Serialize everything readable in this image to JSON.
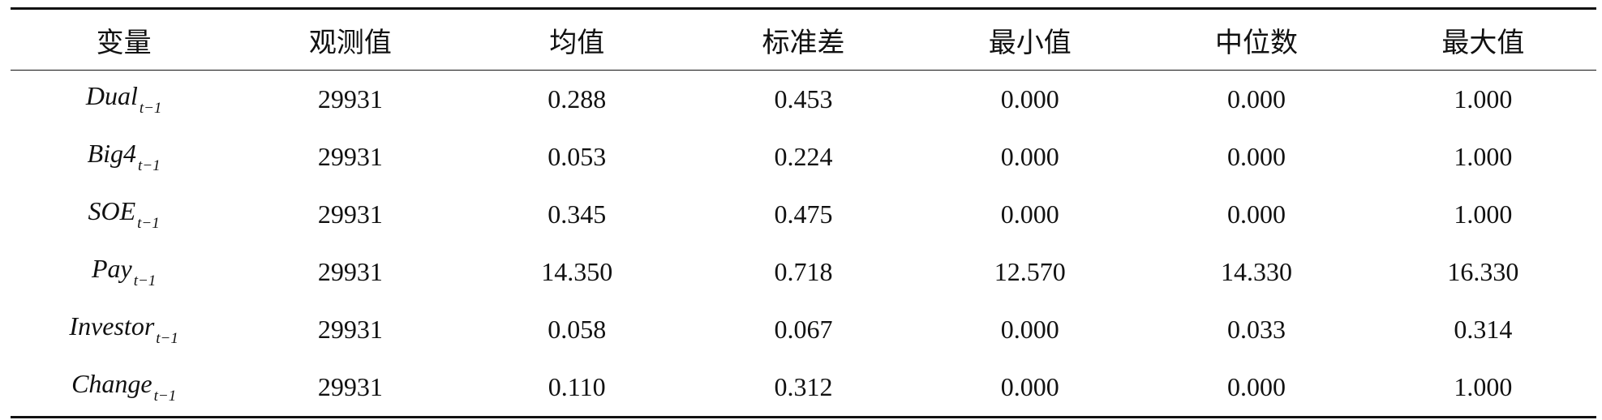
{
  "table": {
    "header": [
      "变量",
      "观测值",
      "均值",
      "标准差",
      "最小值",
      "中位数",
      "最大值"
    ],
    "rows": [
      [
        {
          "name": "Dual",
          "sub": "t−1"
        },
        "29931",
        "0.288",
        "0.453",
        "0.000",
        "0.000",
        "1.000"
      ],
      [
        {
          "name": "Big4",
          "sub": "t−1"
        },
        "29931",
        "0.053",
        "0.224",
        "0.000",
        "0.000",
        "1.000"
      ],
      [
        {
          "name": "SOE",
          "sub": "t−1"
        },
        "29931",
        "0.345",
        "0.475",
        "0.000",
        "0.000",
        "1.000"
      ],
      [
        {
          "name": "Pay",
          "sub": "t−1"
        },
        "29931",
        "14.350",
        "0.718",
        "12.570",
        "14.330",
        "16.330"
      ],
      [
        {
          "name": "Investor",
          "sub": "t−1"
        },
        "29931",
        "0.058",
        "0.067",
        "0.000",
        "0.033",
        "0.314"
      ],
      [
        {
          "name": "Change",
          "sub": "t−1"
        },
        "29931",
        "0.110",
        "0.312",
        "0.000",
        "0.000",
        "1.000"
      ]
    ]
  }
}
